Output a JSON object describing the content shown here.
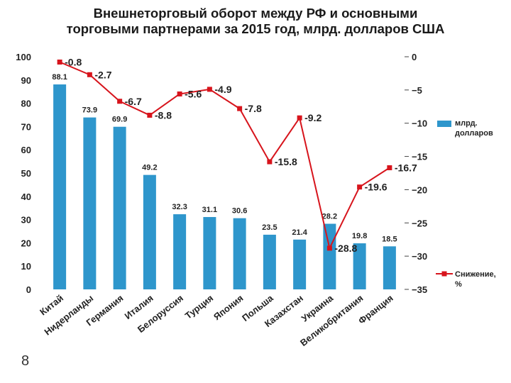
{
  "slide": {
    "title_line1": "Внешнеторговый оборот между РФ и основными",
    "title_line2": "торговыми партнерами за 2015 год, млрд. долларов США",
    "page_number": "8"
  },
  "colors": {
    "bar": "#2e96cc",
    "line": "#d7141c",
    "text": "#222222"
  },
  "chart_data": {
    "type": "bar",
    "title": "Внешнеторговый оборот между РФ и основными торговыми партнерами за 2015 год, млрд. долларов США",
    "categories": [
      "Китай",
      "Нидерланды",
      "Германия",
      "Италия",
      "Белоруссия",
      "Турция",
      "Япония",
      "Польша",
      "Казахстан",
      "Украина",
      "Великобритания",
      "Франция"
    ],
    "left_axis": {
      "ylim": [
        0,
        100
      ],
      "ticks": [
        "0",
        "10",
        "20",
        "30",
        "40",
        "50",
        "60",
        "70",
        "80",
        "90",
        "100"
      ]
    },
    "right_axis": {
      "ylim": [
        -35,
        0
      ],
      "ticks": [
        "0",
        "−5",
        "−10",
        "−15",
        "−20",
        "−25",
        "−30",
        "−35"
      ]
    },
    "series": [
      {
        "name": "млрд. долларов",
        "type": "bar",
        "axis": "left",
        "values": [
          88.1,
          73.9,
          69.9,
          49.2,
          32.3,
          31.1,
          30.6,
          23.5,
          21.4,
          28.2,
          19.8,
          18.5
        ],
        "labels": [
          "88.1",
          "73.9",
          "69.9",
          "49.2",
          "32.3",
          "31.1",
          "30.6",
          "23.5",
          "21.4",
          "28.2",
          "19.8",
          "18.5"
        ]
      },
      {
        "name": "Снижение, %",
        "type": "line",
        "axis": "right",
        "values": [
          -0.8,
          -2.7,
          -6.7,
          -8.8,
          -5.6,
          -4.9,
          -7.8,
          -15.8,
          -9.2,
          -28.8,
          -19.6,
          -16.7
        ],
        "labels": [
          "-0.8",
          "-2.7",
          "-6.7",
          "-8.8",
          "-5.6",
          "-4.9",
          "-7.8",
          "-15.8",
          "-9.2",
          "-28.8",
          "-19.6",
          "-16.7"
        ]
      }
    ],
    "legend": {
      "position": "right",
      "entries": [
        "млрд. долларов",
        "Снижение, %"
      ]
    }
  }
}
